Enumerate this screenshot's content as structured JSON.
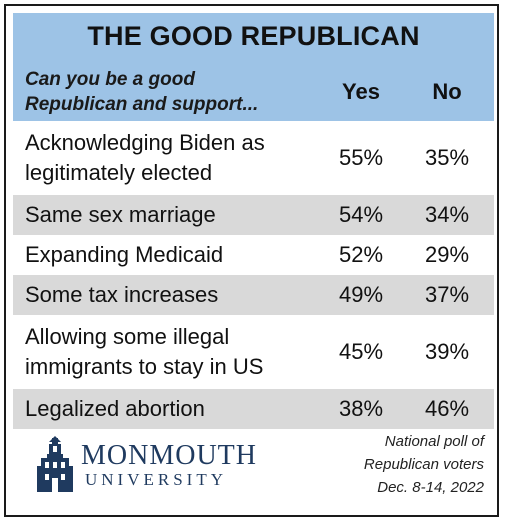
{
  "title": "THE GOOD REPUBLICAN",
  "question_lines": [
    "Can you be a good",
    "Republican and support..."
  ],
  "col_yes": "Yes",
  "col_no": "No",
  "chart_data": {
    "type": "table",
    "title": "THE GOOD REPUBLICAN",
    "columns": [
      "Yes",
      "No"
    ],
    "rows": [
      {
        "lines": [
          "Acknowledging Biden as",
          "legitimately elected"
        ],
        "yes": "55%",
        "no": "35%",
        "shaded": false
      },
      {
        "lines": [
          "Same sex marriage"
        ],
        "yes": "54%",
        "no": "34%",
        "shaded": true
      },
      {
        "lines": [
          "Expanding Medicaid"
        ],
        "yes": "52%",
        "no": "29%",
        "shaded": false
      },
      {
        "lines": [
          "Some tax increases"
        ],
        "yes": "49%",
        "no": "37%",
        "shaded": true
      },
      {
        "lines": [
          "Allowing some illegal",
          "immigrants to stay in US"
        ],
        "yes": "45%",
        "no": "39%",
        "shaded": false
      },
      {
        "lines": [
          "Legalized abortion"
        ],
        "yes": "38%",
        "no": "46%",
        "shaded": true
      }
    ]
  },
  "logo": {
    "name": "MONMOUTH",
    "sub": "UNIVERSITY"
  },
  "note_lines": [
    "National poll of",
    "Republican voters",
    "Dec. 8-14, 2022"
  ],
  "colors": {
    "header": "#9dc3e6",
    "shade": "#d9d9d9",
    "logo": "#1f3a5f"
  }
}
